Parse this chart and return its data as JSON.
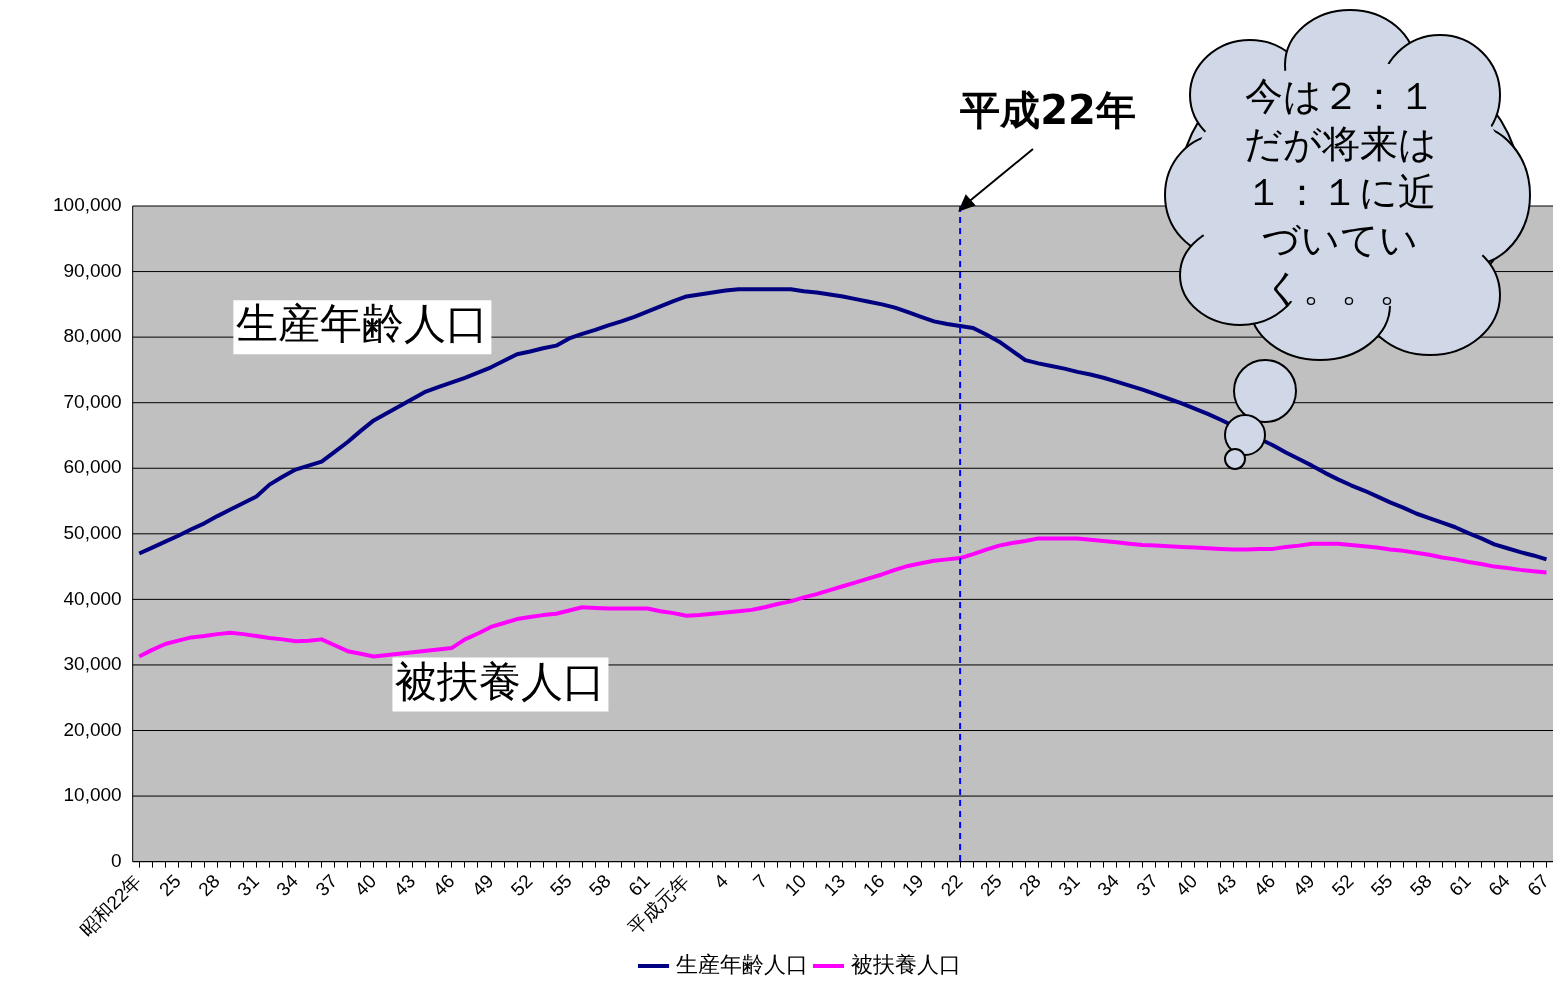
{
  "chart_data": {
    "type": "line",
    "categories": [
      "昭和22年",
      null,
      null,
      "25",
      null,
      null,
      "28",
      null,
      null,
      "31",
      null,
      null,
      "34",
      null,
      null,
      "37",
      null,
      null,
      "40",
      null,
      null,
      "43",
      null,
      null,
      "46",
      null,
      null,
      "49",
      null,
      null,
      "52",
      null,
      null,
      "55",
      null,
      null,
      "58",
      null,
      null,
      "61",
      null,
      null,
      "平成元年",
      null,
      null,
      "4",
      null,
      null,
      "7",
      null,
      null,
      "10",
      null,
      null,
      "13",
      null,
      null,
      "16",
      null,
      null,
      "19",
      null,
      null,
      "22",
      null,
      null,
      "25",
      null,
      null,
      "28",
      null,
      null,
      "31",
      null,
      null,
      "34",
      null,
      null,
      "37",
      null,
      null,
      "40",
      null,
      null,
      "43",
      null,
      null,
      "46",
      null,
      null,
      "49",
      null,
      null,
      "52",
      null,
      null,
      "55",
      null,
      null,
      "58",
      null,
      null,
      "61",
      null,
      null,
      "64",
      null,
      null,
      "67"
    ],
    "ylim": [
      0,
      100000
    ],
    "yticks": [
      {
        "value": 0,
        "label": "0"
      },
      {
        "value": 10000,
        "label": "10,000"
      },
      {
        "value": 20000,
        "label": "20,000"
      },
      {
        "value": 30000,
        "label": "30,000"
      },
      {
        "value": 40000,
        "label": "40,000"
      },
      {
        "value": 50000,
        "label": "50,000"
      },
      {
        "value": 60000,
        "label": "60,000"
      },
      {
        "value": 70000,
        "label": "70,000"
      },
      {
        "value": 80000,
        "label": "80,000"
      },
      {
        "value": 90000,
        "label": "90,000"
      },
      {
        "value": 100000,
        "label": "100,000"
      }
    ],
    "grid": "y",
    "legend": "bottom",
    "marker": "none",
    "line_style": "solid",
    "series": [
      {
        "name": "生産年齢人口",
        "color": "#000080",
        "values": [
          47000,
          47900,
          48800,
          49700,
          50700,
          51600,
          52700,
          53700,
          54700,
          55700,
          57500,
          58700,
          59800,
          60400,
          61000,
          62500,
          64000,
          65700,
          67300,
          68400,
          69500,
          70600,
          71700,
          72400,
          73100,
          73800,
          74600,
          75400,
          76400,
          77400,
          77800,
          78300,
          78700,
          79800,
          80500,
          81100,
          81800,
          82400,
          83100,
          83900,
          84700,
          85500,
          86200,
          86500,
          86800,
          87100,
          87300,
          87300,
          87300,
          87300,
          87300,
          87000,
          86800,
          86500,
          86200,
          85800,
          85400,
          85000,
          84500,
          83800,
          83100,
          82400,
          82000,
          81700,
          81400,
          80400,
          79300,
          77900,
          76500,
          76000,
          75600,
          75200,
          74700,
          74300,
          73800,
          73200,
          72600,
          72000,
          71300,
          70600,
          69900,
          69100,
          68300,
          67400,
          null,
          null,
          null,
          63500,
          62400,
          61400,
          60400,
          59300,
          58300,
          57400,
          56600,
          55700,
          54800,
          54000,
          53100,
          52400,
          51700,
          51000,
          50100,
          49300,
          48400,
          47800,
          47200,
          46700,
          46100
        ]
      },
      {
        "name": "被扶養人口",
        "color": "#ff00ff",
        "values": [
          31300,
          32300,
          33200,
          33700,
          34200,
          34400,
          34700,
          34900,
          34700,
          34400,
          34100,
          33900,
          33600,
          33700,
          33900,
          33000,
          32100,
          31700,
          31300,
          null,
          null,
          null,
          null,
          null,
          32600,
          33900,
          34800,
          35800,
          36400,
          37000,
          37300,
          37600,
          37800,
          38300,
          38800,
          38700,
          38600,
          38600,
          38600,
          38600,
          38200,
          37900,
          37500,
          37600,
          37800,
          38000,
          38200,
          38400,
          38800,
          39300,
          39700,
          40300,
          40800,
          41400,
          42000,
          42600,
          43200,
          43800,
          44500,
          45100,
          45500,
          45900,
          46100,
          46300,
          46900,
          47600,
          48200,
          48600,
          48900,
          49300,
          49300,
          49300,
          49300,
          49100,
          48900,
          48700,
          48500,
          48300,
          48200,
          48100,
          48000,
          47900,
          47800,
          47700,
          47600,
          47600,
          47700,
          47700,
          48000,
          48200,
          48500,
          48500,
          48500,
          48300,
          48100,
          47900,
          47600,
          47400,
          47100,
          46800,
          46400,
          46100,
          45700,
          45400,
          45000,
          44800,
          44500,
          44300,
          44100
        ]
      }
    ],
    "ref_lines": [
      {
        "axis": "x",
        "value": "22",
        "label": "平成22年",
        "color": "#0000ff",
        "line_style": "dashed"
      }
    ],
    "annotations": [
      "今は２：１だが将来は１：１に近づいていく。。。"
    ]
  }
}
